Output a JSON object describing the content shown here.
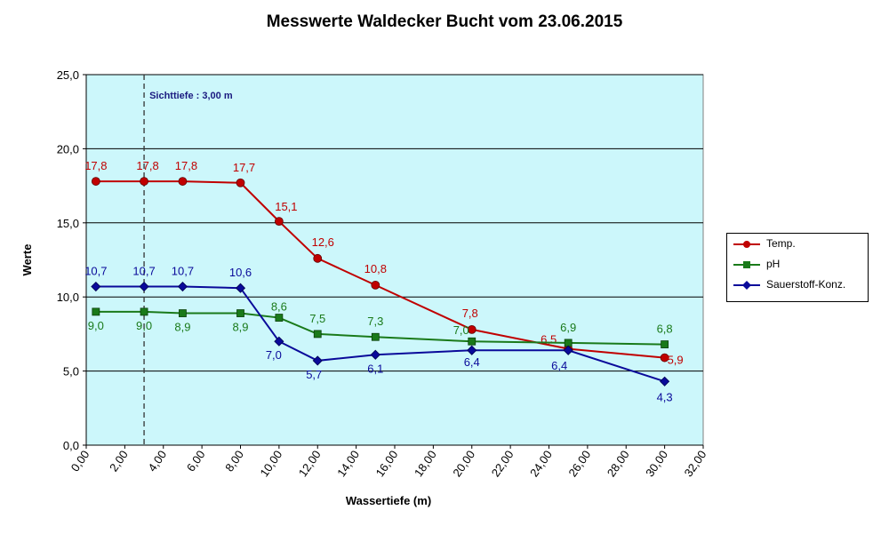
{
  "chart_data": {
    "type": "line",
    "title": "Messwerte Waldecker Bucht vom 23.06.2015",
    "xlabel": "Wassertiefe  (m)",
    "ylabel": "Werte",
    "xlim": [
      0,
      32
    ],
    "ylim": [
      0,
      25
    ],
    "x_ticks": [
      "0,00",
      "2,00",
      "4,00",
      "6,00",
      "8,00",
      "10,00",
      "12,00",
      "14,00",
      "16,00",
      "18,00",
      "20,00",
      "22,00",
      "24,00",
      "26,00",
      "28,00",
      "30,00",
      "32,00"
    ],
    "y_ticks": [
      "0,0",
      "5,0",
      "10,0",
      "15,0",
      "20,0",
      "25,0"
    ],
    "x": [
      0.5,
      3,
      5,
      8,
      10,
      12,
      15,
      20,
      25,
      30
    ],
    "series": [
      {
        "name": "Temp.",
        "color": "#c00000",
        "marker": "circle",
        "values": [
          17.8,
          17.8,
          17.8,
          17.7,
          15.1,
          12.6,
          10.8,
          7.8,
          6.5,
          5.9
        ],
        "labels": [
          "17,8",
          "17,8",
          "17,8",
          "17,7",
          "15,1",
          "12,6",
          "10,8",
          "7,8",
          "6,5",
          "5,9"
        ]
      },
      {
        "name": "pH",
        "color": "#1a7a1a",
        "marker": "square",
        "values": [
          9.0,
          9.0,
          8.9,
          8.9,
          8.6,
          7.5,
          7.3,
          7.0,
          6.9,
          6.8
        ],
        "labels": [
          "9,0",
          "9,0",
          "8,9",
          "8,9",
          "8,6",
          "7,5",
          "7,3",
          "7,0",
          "6,9",
          "6,8"
        ]
      },
      {
        "name": "Sauerstoff-Konz.",
        "color": "#0a0a9a",
        "marker": "diamond",
        "values": [
          10.7,
          10.7,
          10.7,
          10.6,
          7.0,
          5.7,
          6.1,
          6.4,
          6.4,
          4.3
        ],
        "labels": [
          "10,7",
          "10,7",
          "10,7",
          "10,6",
          "7,0",
          "5,7",
          "6,1",
          "6,4",
          "6,4",
          "4,3"
        ]
      }
    ],
    "annotation": {
      "text": "Sichttiefe : 3,00 m",
      "x": 3
    },
    "plot_background": "#ccf7fb",
    "grid": "horizontal",
    "legend_position": "right"
  }
}
